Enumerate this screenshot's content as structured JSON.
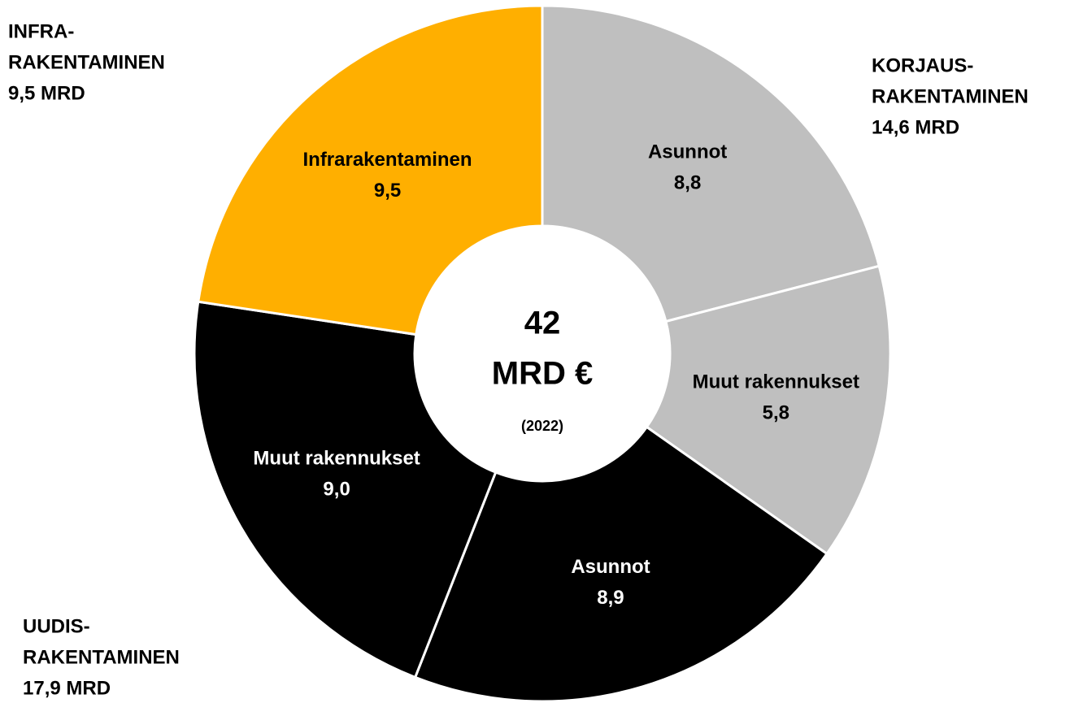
{
  "chart_data": {
    "type": "donut",
    "categories": [
      "Asunnot",
      "Muut rakennukset",
      "Asunnot",
      "Muut rakennukset",
      "Infrarakentaminen"
    ],
    "values": [
      8.8,
      5.8,
      8.9,
      9.0,
      9.5
    ],
    "value_labels": [
      "8,8",
      "5,8",
      "8,9",
      "9,0",
      "9,5"
    ],
    "colors": [
      "#bfbfbf",
      "#bfbfbf",
      "#000000",
      "#000000",
      "#ffaf00"
    ],
    "center": [
      "42",
      "MRD €",
      "(2022)"
    ],
    "annotations": [
      {
        "lines": [
          "KORJAUS-",
          "RAKENTAMINEN",
          "14,6 MRD"
        ]
      },
      {
        "lines": [
          "UUDIS-",
          "RAKENTAMINEN",
          "17,9 MRD"
        ]
      },
      {
        "lines": [
          "INFRA-",
          "RAKENTAMINEN",
          "9,5 MRD"
        ]
      }
    ]
  }
}
